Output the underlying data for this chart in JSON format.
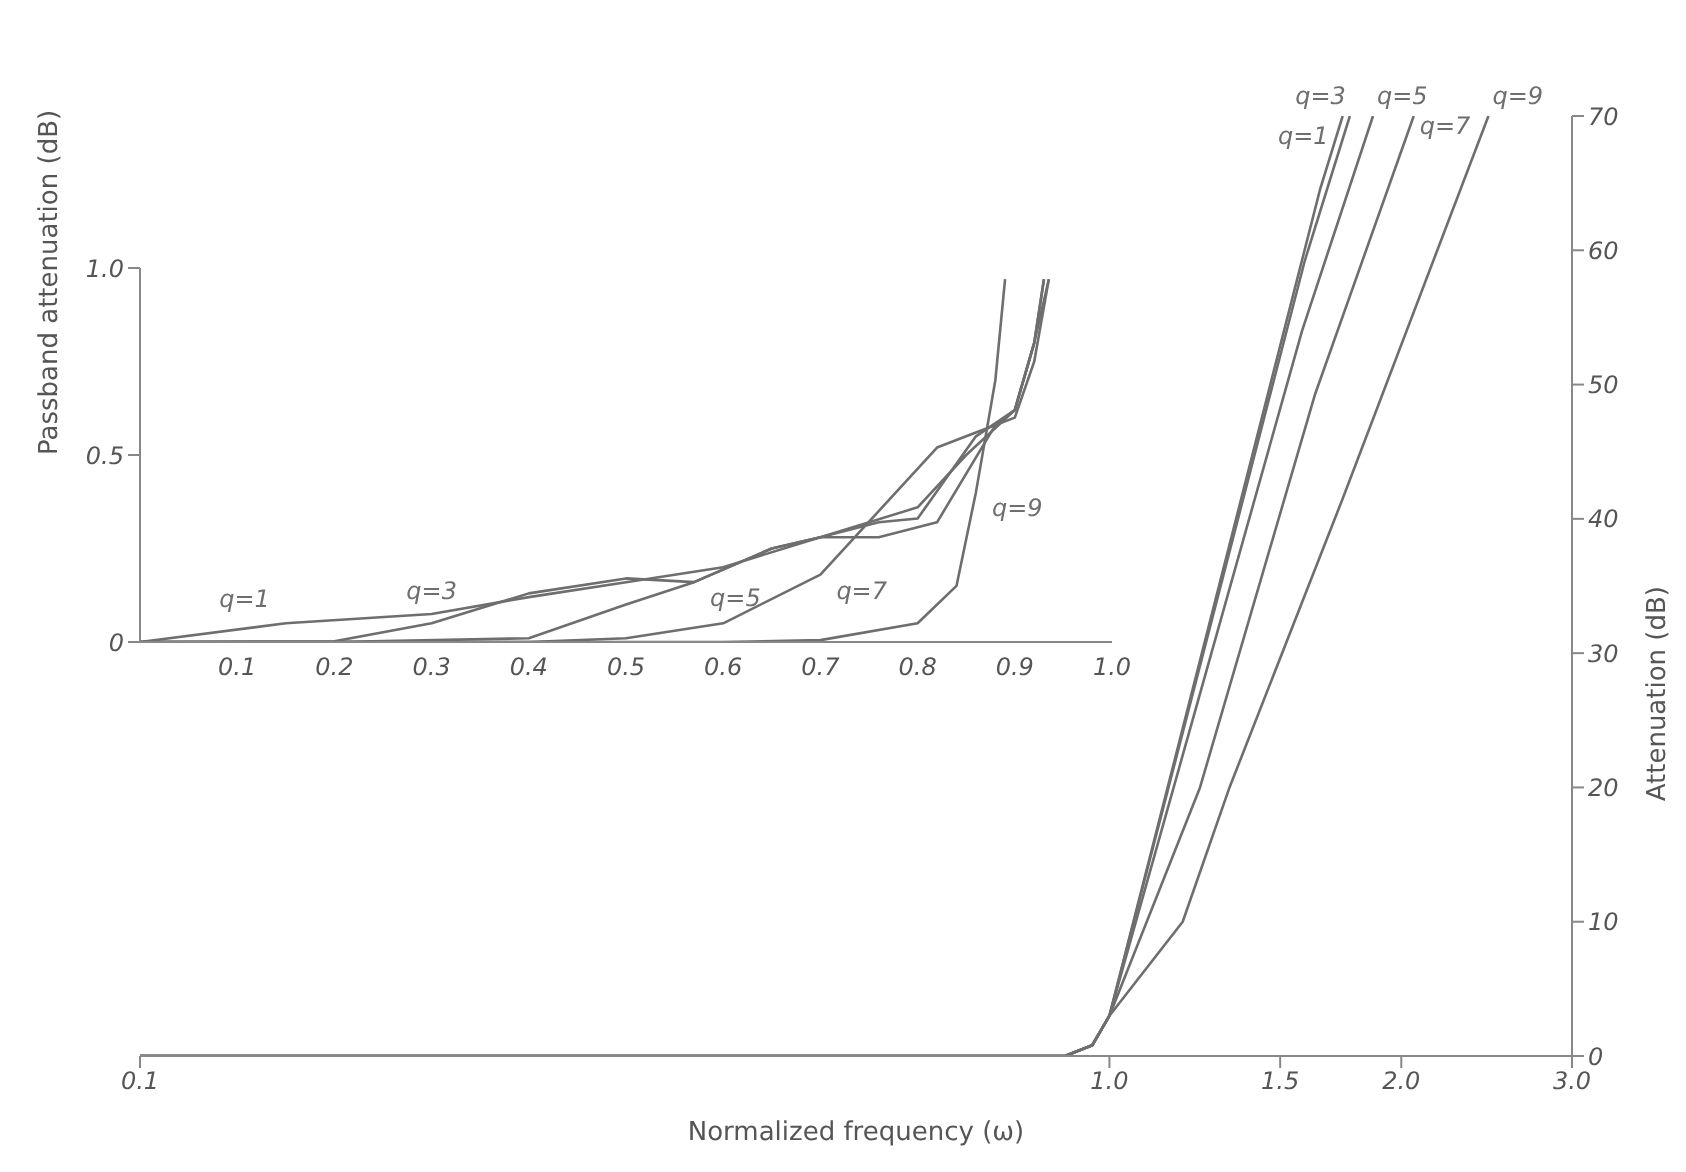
{
  "chart_data": [
    {
      "type": "line",
      "xlabel": "Normalized frequency (ω)",
      "y2label": "Attenuation (dB)",
      "log": "x",
      "marker": "none",
      "xlim": [
        0.1,
        3.0
      ],
      "xticks": [
        0.1,
        {
          "value": 1.0,
          "label": "1.0"
        },
        1.5,
        {
          "value": 2.0,
          "label": "2.0"
        },
        {
          "value": 3.0,
          "label": "3.0"
        }
      ],
      "y2lim": [
        0,
        70
      ],
      "y2ticks": [
        0,
        10,
        20,
        30,
        40,
        50,
        60,
        70
      ],
      "series": [
        {
          "name": "q=1",
          "color": "#6e6e6e",
          "axis": "y2",
          "x": [
            0.1,
            0.9,
            0.96,
            1.0,
            1.65,
            1.74
          ],
          "values": [
            0,
            0,
            0.8,
            3,
            64.6,
            70
          ]
        },
        {
          "name": "q=3",
          "color": "#6e6e6e",
          "axis": "y2",
          "x": [
            0.1,
            0.9,
            0.96,
            1.0,
            1.59,
            1.77
          ],
          "values": [
            0,
            0,
            0.8,
            3,
            59.2,
            70
          ]
        },
        {
          "name": "q=5",
          "color": "#6e6e6e",
          "axis": "y2",
          "x": [
            0.1,
            0.9,
            0.96,
            1.0,
            1.58,
            1.87
          ],
          "values": [
            0,
            0,
            0.8,
            3,
            54,
            70
          ]
        },
        {
          "name": "q=7",
          "color": "#6e6e6e",
          "axis": "y2",
          "x": [
            0.1,
            0.9,
            0.96,
            1.0,
            1.24,
            1.63,
            2.06
          ],
          "values": [
            0,
            0,
            0.8,
            3,
            20,
            49.3,
            70
          ]
        },
        {
          "name": "q=9",
          "color": "#6e6e6e",
          "axis": "y2",
          "x": [
            0.1,
            0.9,
            0.96,
            1.0,
            1.19,
            1.33,
            1.74,
            2.46
          ],
          "values": [
            0,
            0,
            0.8,
            3,
            10,
            20,
            41.5,
            70
          ]
        }
      ]
    },
    {
      "type": "line",
      "ylabel": "Passband attenuation (dB)",
      "marker": "none",
      "xlim": [
        0,
        1.0
      ],
      "xticks": [
        0.1,
        0.2,
        0.3,
        0.4,
        0.5,
        0.6,
        0.7,
        0.8,
        0.9,
        {
          "value": 1.0,
          "label": "1.0"
        }
      ],
      "ylim": [
        0,
        1.0
      ],
      "yticks": [
        0,
        0.5,
        {
          "value": 1.0,
          "label": "1.0"
        }
      ],
      "series": [
        {
          "name": "q=1",
          "color": "#6e6e6e",
          "x": [
            0,
            0.15,
            0.3,
            0.4,
            0.5,
            0.6,
            0.7,
            0.8,
            0.85,
            0.9,
            0.92,
            0.93
          ],
          "values": [
            0,
            0.05,
            0.075,
            0.12,
            0.16,
            0.2,
            0.28,
            0.36,
            0.5,
            0.62,
            0.8,
            0.97
          ]
        },
        {
          "name": "q=3",
          "color": "#6e6e6e",
          "x": [
            0,
            0.2,
            0.3,
            0.4,
            0.5,
            0.57,
            0.65,
            0.7,
            0.76,
            0.82,
            0.88,
            0.9,
            0.92,
            0.935
          ],
          "values": [
            0,
            0.002,
            0.05,
            0.13,
            0.17,
            0.16,
            0.25,
            0.28,
            0.28,
            0.32,
            0.58,
            0.62,
            0.8,
            0.97
          ]
        },
        {
          "name": "q=5",
          "color": "#6e6e6e",
          "x": [
            0,
            0.2,
            0.4,
            0.5,
            0.57,
            0.65,
            0.7,
            0.76,
            0.8,
            0.86,
            0.9,
            0.92,
            0.93
          ],
          "values": [
            0,
            0,
            0.01,
            0.1,
            0.16,
            0.25,
            0.28,
            0.32,
            0.33,
            0.55,
            0.62,
            0.8,
            0.97
          ]
        },
        {
          "name": "q=7",
          "color": "#6e6e6e",
          "x": [
            0,
            0.4,
            0.5,
            0.6,
            0.7,
            0.76,
            0.82,
            0.86,
            0.9,
            0.92,
            0.935
          ],
          "values": [
            0,
            0,
            0.01,
            0.05,
            0.18,
            0.35,
            0.52,
            0.56,
            0.6,
            0.75,
            0.97
          ]
        },
        {
          "name": "q=9",
          "color": "#6e6e6e",
          "x": [
            0,
            0.6,
            0.7,
            0.8,
            0.84,
            0.86,
            0.88,
            0.89
          ],
          "values": [
            0,
            0,
            0.005,
            0.05,
            0.15,
            0.4,
            0.7,
            0.97
          ]
        }
      ]
    }
  ]
}
